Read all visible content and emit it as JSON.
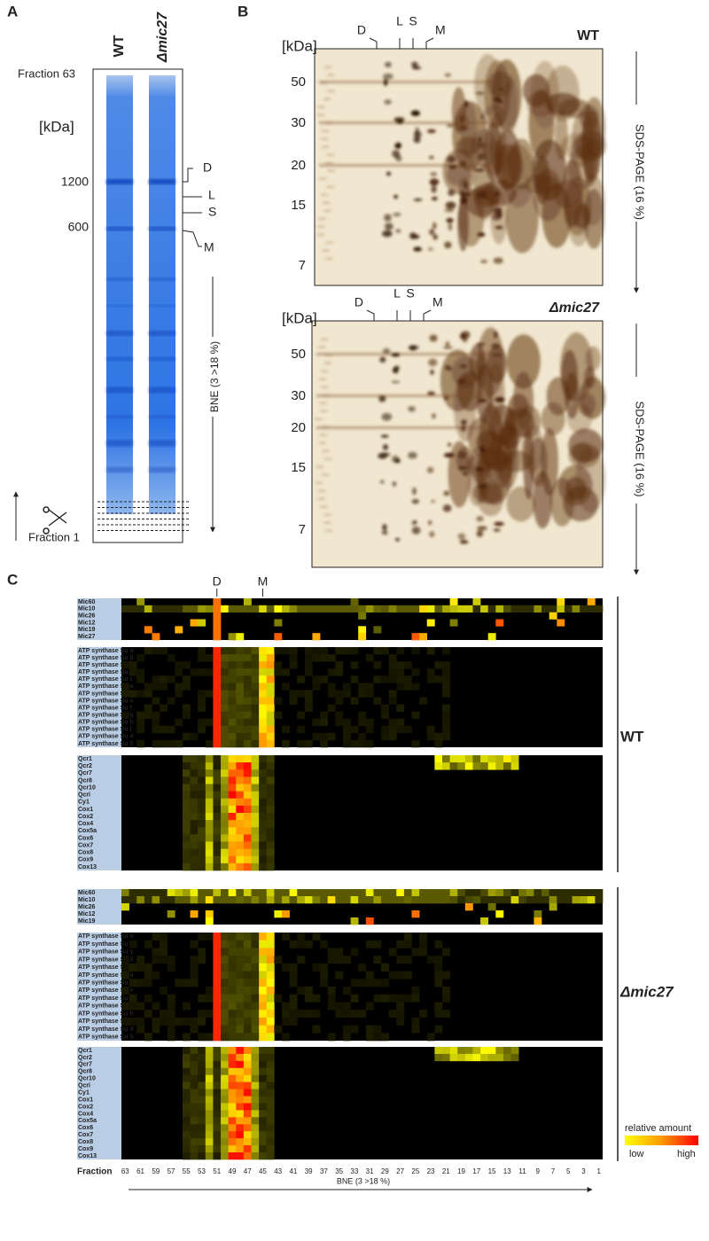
{
  "panel_a": {
    "letter": "A",
    "lanes": [
      "WT",
      "Δmic27"
    ],
    "top_label": "Fraction 63",
    "unit": "[kDa]",
    "markers": [
      "1200",
      "600"
    ],
    "complexes": [
      "D",
      "L",
      "S",
      "M"
    ],
    "axis_label": "BNE (3 >18 %)",
    "bottom_label": "Fraction 1"
  },
  "panel_b": {
    "letter": "B",
    "gels": [
      {
        "strain": "WT",
        "unit": "[kDa]",
        "markers": [
          "50",
          "30",
          "20",
          "15",
          "7"
        ],
        "complexes": [
          "D",
          "L",
          "S",
          "M"
        ],
        "axis_label": "SDS-PAGE (16 %)"
      },
      {
        "strain": "Δmic27",
        "unit": "[kDa]",
        "markers": [
          "50",
          "30",
          "20",
          "15",
          "7"
        ],
        "complexes": [
          "D",
          "L",
          "S",
          "M"
        ],
        "axis_label": "SDS-PAGE (16 %)"
      }
    ]
  },
  "panel_c": {
    "letter": "C",
    "markers": [
      "D",
      "M"
    ],
    "strains": [
      {
        "name": "WT",
        "groups": [
          [
            "Mic60",
            "Mic10",
            "Mic26",
            "Mic12",
            "Mic19",
            "Mic27"
          ],
          [
            "ATP synthase Su α",
            "ATP synthase Su β",
            "ATP synthase Su γ",
            "ATP synthase Su δ",
            "ATP synthase Su ε",
            "ATP synthase Su a",
            "ATP synthase Su d",
            "ATP synthase Su e",
            "ATP synthase Su f",
            "ATP synthase Su g",
            "ATP synthase Su h",
            "ATP synthase Su j",
            "ATP synthase Su 4",
            "ATP synthase Su 5"
          ],
          [
            "Qcr1",
            "Qcr2",
            "Qcr7",
            "Qcr8",
            "Qcr10",
            "Qcri",
            "Cy1",
            "Cox1",
            "Cox2",
            "Cox4",
            "Cox5a",
            "Cox6",
            "Cox7",
            "Cox8",
            "Cox9",
            "Cox13"
          ]
        ]
      },
      {
        "name": "Δmic27",
        "groups": [
          [
            "Mic60",
            "Mic10",
            "Mic26",
            "Mic12",
            "Mic19"
          ],
          [
            "ATP synthase Su α",
            "ATP synthase Su β",
            "ATP synthase Su γ",
            "ATP synthase Su δ",
            "ATP synthase Su ε",
            "ATP synthase Su a",
            "ATP synthase Su d",
            "ATP synthase Su e",
            "ATP synthase Su f",
            "ATP synthase Su g",
            "ATP synthase Su h",
            "ATP synthase Su j",
            "ATP synthase Su 4",
            "ATP synthase Su 5"
          ],
          [
            "Qcr1",
            "Qcr2",
            "Qcr7",
            "Qcr8",
            "Qcr10",
            "Qcri",
            "Cy1",
            "Cox1",
            "Cox2",
            "Cox4",
            "Cox5a",
            "Cox6",
            "Cox7",
            "Cox8",
            "Cox9",
            "Cox13"
          ]
        ]
      }
    ],
    "legend": {
      "title": "relative amount",
      "low": "low",
      "high": "high"
    },
    "x_label": "Fraction",
    "fractions": [
      "63",
      "61",
      "59",
      "57",
      "55",
      "53",
      "51",
      "49",
      "47",
      "45",
      "43",
      "41",
      "39",
      "37",
      "35",
      "33",
      "31",
      "29",
      "27",
      "25",
      "23",
      "21",
      "19",
      "17",
      "15",
      "13",
      "11",
      "9",
      "7",
      "5",
      "3",
      "1"
    ],
    "axis_label": "BNE (3 >18 %)"
  }
}
